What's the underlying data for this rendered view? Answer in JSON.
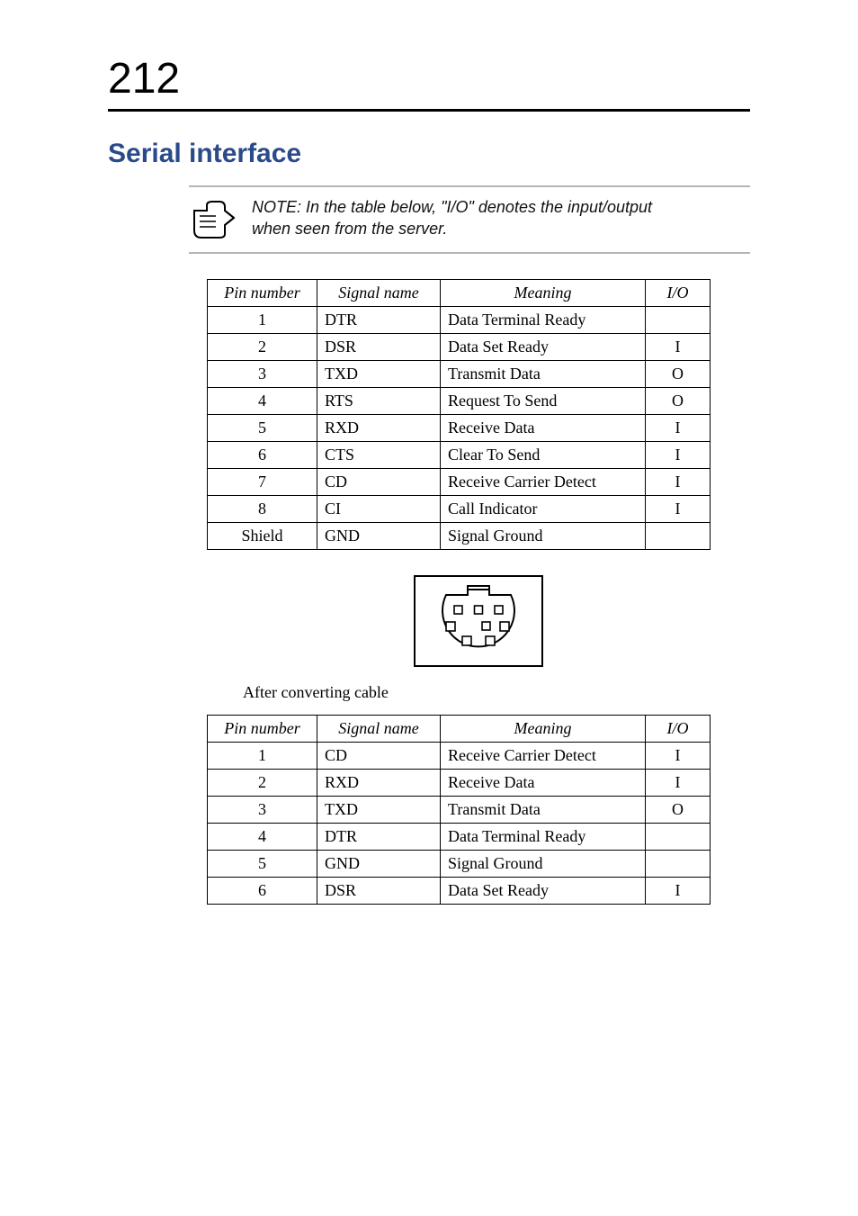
{
  "page_number": "212",
  "section_title": "Serial interface",
  "note": {
    "line1": "NOTE: In the table below, \"I/O\" denotes the input/output",
    "line2": "when seen from the server."
  },
  "table_headers": {
    "pin": "Pin number",
    "signal": "Signal name",
    "meaning": "Meaning",
    "io": "I/O"
  },
  "table1": {
    "rows": [
      {
        "pin": "1",
        "sig": "DTR",
        "mean": "Data Terminal Ready",
        "io": ""
      },
      {
        "pin": "2",
        "sig": "DSR",
        "mean": "Data Set Ready",
        "io": "I"
      },
      {
        "pin": "3",
        "sig": "TXD",
        "mean": "Transmit Data",
        "io": "O"
      },
      {
        "pin": "4",
        "sig": "RTS",
        "mean": "Request To Send",
        "io": "O"
      },
      {
        "pin": "5",
        "sig": "RXD",
        "mean": "Receive Data",
        "io": "I"
      },
      {
        "pin": "6",
        "sig": "CTS",
        "mean": "Clear To Send",
        "io": "I"
      },
      {
        "pin": "7",
        "sig": "CD",
        "mean": "Receive Carrier Detect",
        "io": "I"
      },
      {
        "pin": "8",
        "sig": "CI",
        "mean": "Call Indicator",
        "io": "I"
      },
      {
        "pin": "Shield",
        "sig": "GND",
        "mean": "Signal Ground",
        "io": ""
      }
    ]
  },
  "caption": "After converting cable",
  "table2": {
    "rows": [
      {
        "pin": "1",
        "sig": "CD",
        "mean": "Receive Carrier Detect",
        "io": "I"
      },
      {
        "pin": "2",
        "sig": "RXD",
        "mean": "Receive Data",
        "io": "I"
      },
      {
        "pin": "3",
        "sig": "TXD",
        "mean": "Transmit Data",
        "io": "O"
      },
      {
        "pin": "4",
        "sig": "DTR",
        "mean": "Data Terminal Ready",
        "io": ""
      },
      {
        "pin": "5",
        "sig": "GND",
        "mean": "Signal Ground",
        "io": ""
      },
      {
        "pin": "6",
        "sig": "DSR",
        "mean": "Data Set Ready",
        "io": "I"
      }
    ]
  },
  "connector": {
    "box_stroke": "#000000",
    "pin_fill": "#ffffff",
    "pin_stroke": "#000000"
  }
}
